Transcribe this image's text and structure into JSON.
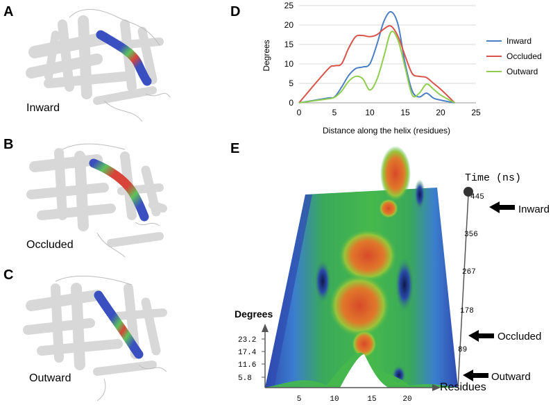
{
  "panels": {
    "a": {
      "letter": "A",
      "state": "Inward"
    },
    "b": {
      "letter": "B",
      "state": "Occluded"
    },
    "c": {
      "letter": "C",
      "state": "Outward"
    },
    "d": {
      "letter": "D"
    },
    "e": {
      "letter": "E"
    }
  },
  "colors": {
    "inward": "#4a7ec5",
    "occluded": "#d9534a",
    "outward": "#8fce4e",
    "protein": "#e4e4e4",
    "helix_blue": "#3a4fc0",
    "helix_green": "#5ec25a",
    "helix_red": "#d8443a"
  },
  "chart_data": [
    {
      "type": "line",
      "ylabel": "Degrees",
      "xlabel": "Distance along the helix (residues)",
      "xlim": [
        0,
        25
      ],
      "ylim": [
        0,
        25
      ],
      "xticks": [
        0,
        5,
        10,
        15,
        20,
        25
      ],
      "yticks": [
        0,
        5,
        10,
        15,
        20,
        25
      ],
      "grid": "horizontal",
      "legend": "right",
      "series": [
        {
          "name": "Inward",
          "color": "#4a7ec5",
          "x": [
            0,
            4,
            5,
            6,
            7,
            8,
            9,
            10,
            11,
            12,
            13,
            14,
            15,
            16,
            17,
            18,
            19,
            20,
            22
          ],
          "y": [
            0,
            1.2,
            1.5,
            4,
            7,
            8.8,
            9.2,
            10,
            15,
            21,
            23.4,
            20,
            10,
            3,
            1.5,
            2.5,
            1.2,
            0.7,
            0
          ]
        },
        {
          "name": "Occluded",
          "color": "#d9534a",
          "x": [
            0,
            4,
            5,
            6,
            7,
            8,
            9,
            10,
            11,
            12,
            13,
            14,
            15,
            16,
            17,
            18,
            19,
            20,
            22
          ],
          "y": [
            0,
            8.5,
            9.5,
            10,
            14,
            17,
            17.3,
            17,
            17.5,
            19,
            19.7,
            17,
            12,
            7.5,
            6.8,
            6.5,
            5,
            3.5,
            0
          ]
        },
        {
          "name": "Outward",
          "color": "#8fce4e",
          "x": [
            0,
            4,
            5,
            6,
            7,
            8,
            9,
            10,
            11,
            12,
            13,
            14,
            15,
            16,
            17,
            18,
            19,
            20,
            22
          ],
          "y": [
            0,
            1,
            1.4,
            3,
            5.5,
            6.8,
            6.2,
            3.3,
            6,
            12,
            18.2,
            16,
            9,
            2,
            2.5,
            4.8,
            3.5,
            2,
            0
          ]
        }
      ]
    },
    {
      "type": "surface",
      "zlabel": "Degrees",
      "zticks": [
        "5.8",
        "11.6",
        "17.4",
        "23.2"
      ],
      "xlabel": "Residues",
      "xticks": [
        "5",
        "10",
        "15",
        "20"
      ],
      "ylabel": "Time (ns)",
      "yticks": [
        "89",
        "178",
        "267",
        "356",
        "445"
      ],
      "state_markers": [
        "Inward",
        "Occluded",
        "Outward"
      ]
    }
  ]
}
